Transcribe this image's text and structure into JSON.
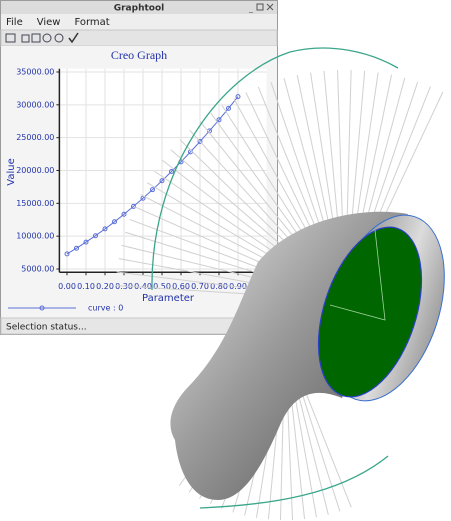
{
  "window": {
    "title": "Graphtool",
    "menu": [
      "File",
      "View",
      "Format"
    ],
    "status": "Selection status..."
  },
  "chart_data": {
    "type": "line",
    "title": "Creo Graph",
    "x_label": "Parameter",
    "y_label": "Value",
    "x": [
      0,
      0.05,
      0.1,
      0.15,
      0.2,
      0.25,
      0.3,
      0.35,
      0.4,
      0.45,
      0.5,
      0.55,
      0.6,
      0.65,
      0.7,
      0.75,
      0.8,
      0.85,
      0.9
    ],
    "series": [
      {
        "name": "curve : 0",
        "color": "#5b6fd8",
        "values": [
          7300,
          8170,
          9100,
          10070,
          11110,
          12190,
          13340,
          14530,
          15780,
          17080,
          18440,
          19850,
          21320,
          22840,
          24410,
          26040,
          27720,
          29460,
          31250
        ]
      }
    ],
    "xlim": [
      -0.04,
      1.05
    ],
    "xticks": [
      {
        "value": 0,
        "label": "0.00"
      },
      {
        "value": 0.1,
        "label": "0.10"
      },
      {
        "value": 0.2,
        "label": "0.20"
      },
      {
        "value": 0.3,
        "label": "0.30"
      },
      {
        "value": 0.4,
        "label": "0.40"
      },
      {
        "value": 0.5,
        "label": "0.50"
      },
      {
        "value": 0.6,
        "label": "0.60"
      },
      {
        "value": 0.7,
        "label": "0.70"
      },
      {
        "value": 0.8,
        "label": "0.80"
      },
      {
        "value": 0.9,
        "label": "0.90"
      }
    ],
    "ylim": [
      4500,
      35500
    ],
    "yticks": [
      {
        "value": 5000,
        "label": "5000.00"
      },
      {
        "value": 10000,
        "label": "10000.00"
      },
      {
        "value": 15000,
        "label": "15000.00"
      },
      {
        "value": 20000,
        "label": "20000.00"
      },
      {
        "value": 25000,
        "label": "25000.00"
      },
      {
        "value": 30000,
        "label": "30000.00"
      },
      {
        "value": 35000,
        "label": "35000.00"
      }
    ],
    "grid": true
  }
}
